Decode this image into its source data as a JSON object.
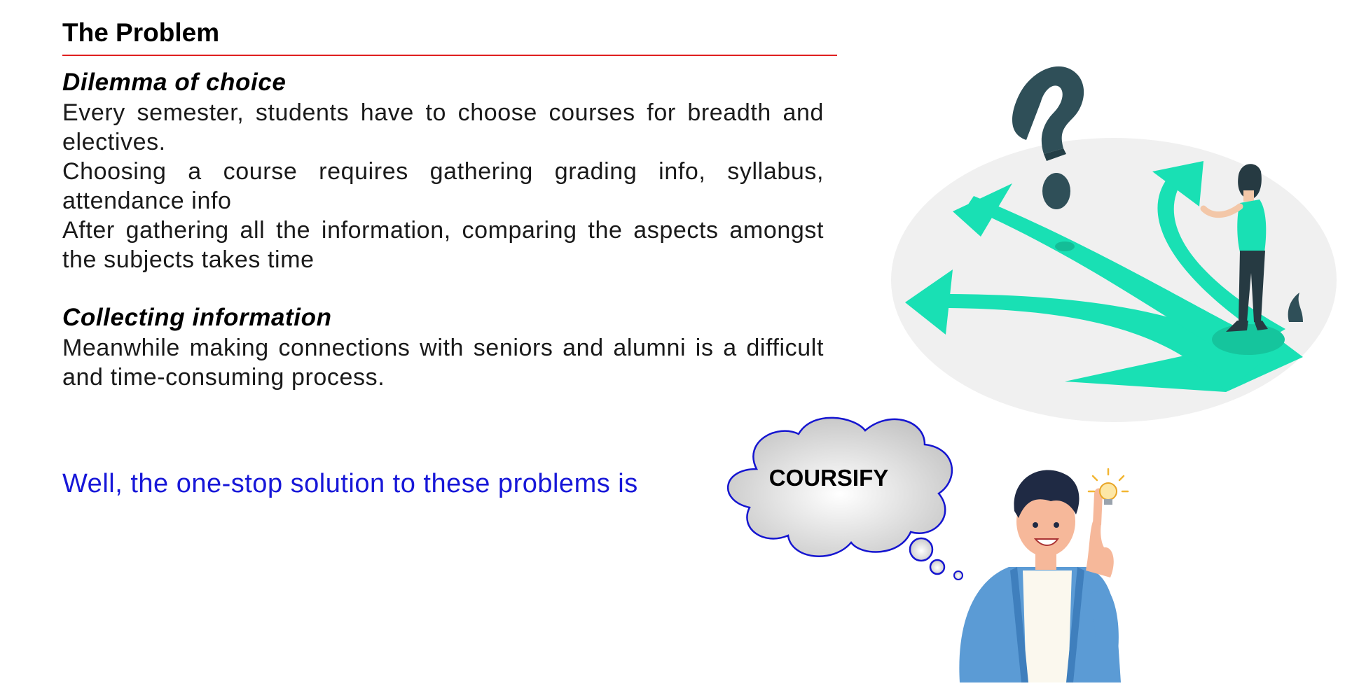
{
  "slide": {
    "title": "The Problem",
    "sections": [
      {
        "heading": "Dilemma of choice",
        "paragraphs": [
          "Every semester, students have to choose courses for breadth and electives.",
          "Choosing a course requires gathering grading info, syllabus, attendance info",
          "After gathering all the information, comparing the aspects amongst the subjects takes time"
        ]
      },
      {
        "heading": "Collecting information",
        "paragraphs": [
          "Meanwhile making connections with seniors and alumni is a difficult and time-consuming process."
        ]
      }
    ],
    "solution_text": "Well, the one-stop solution to these problems is",
    "cloud_text": "COURSIFY"
  },
  "colors": {
    "accent_rule": "#e02020",
    "solution_blue": "#1717d8",
    "arrow_teal": "#19e0b4",
    "question_dark": "#2f4f58"
  },
  "icons": {
    "crossroads": "crossroads-illustration",
    "thinking_person": "idea-person-illustration",
    "thought_cloud": "thought-cloud",
    "lightbulb": "lightbulb-icon"
  }
}
